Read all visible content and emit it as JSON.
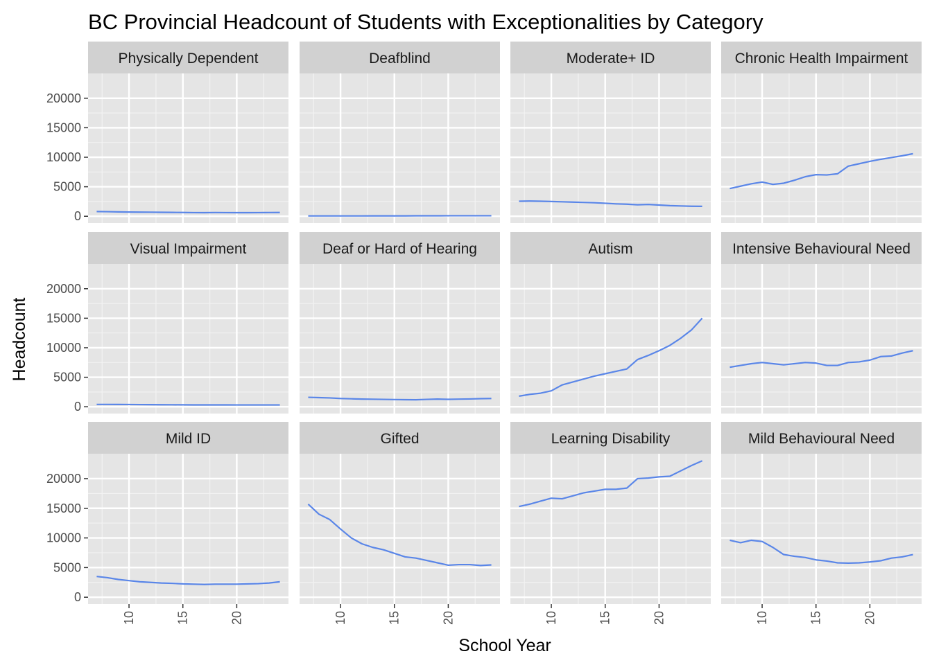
{
  "chart_data": {
    "type": "line",
    "title": "BC Provincial Headcount of Students with Exceptionalities by Category",
    "xlabel": "School Year",
    "ylabel": "Headcount",
    "xlim": [
      6.2,
      24.8
    ],
    "ylim": [
      -1150,
      24200
    ],
    "x_ticks": [
      10,
      15,
      20
    ],
    "y_ticks": [
      0,
      5000,
      10000,
      15000,
      20000
    ],
    "grid": true,
    "layout": "facet 3 rows x 4 columns",
    "line_color": "#5a86e8",
    "panel_background": "#e5e5e5",
    "strip_background": "#d1d1d1",
    "x": [
      7,
      8,
      9,
      10,
      11,
      12,
      13,
      14,
      15,
      16,
      17,
      18,
      19,
      20,
      21,
      22,
      23,
      24
    ],
    "series": [
      {
        "name": "Physically Dependent",
        "values": [
          800,
          780,
          740,
          710,
          700,
          690,
          670,
          650,
          640,
          620,
          610,
          630,
          620,
          610,
          610,
          620,
          630,
          640
        ]
      },
      {
        "name": "Deafblind",
        "values": [
          60,
          60,
          60,
          60,
          60,
          60,
          70,
          70,
          70,
          70,
          80,
          80,
          80,
          90,
          90,
          90,
          90,
          90
        ]
      },
      {
        "name": "Moderate+ ID",
        "values": [
          2550,
          2580,
          2550,
          2500,
          2450,
          2400,
          2350,
          2300,
          2200,
          2100,
          2050,
          1950,
          2000,
          1900,
          1800,
          1750,
          1700,
          1680
        ]
      },
      {
        "name": "Chronic Health Impairment",
        "values": [
          4700,
          5100,
          5500,
          5800,
          5400,
          5600,
          6100,
          6700,
          7050,
          7000,
          7200,
          8500,
          8900,
          9300,
          9650,
          9950,
          10250,
          10600
        ]
      },
      {
        "name": "Visual Impairment",
        "values": [
          400,
          400,
          390,
          380,
          370,
          360,
          350,
          340,
          330,
          320,
          320,
          320,
          320,
          310,
          310,
          310,
          310,
          310
        ]
      },
      {
        "name": "Deaf or Hard of Hearing",
        "values": [
          1600,
          1550,
          1500,
          1400,
          1350,
          1300,
          1280,
          1250,
          1220,
          1200,
          1180,
          1250,
          1300,
          1260,
          1290,
          1320,
          1370,
          1400
        ]
      },
      {
        "name": "Autism",
        "values": [
          1800,
          2100,
          2300,
          2700,
          3700,
          4200,
          4700,
          5200,
          5600,
          6000,
          6400,
          8000,
          8700,
          9500,
          10400,
          11600,
          13000,
          15000
        ]
      },
      {
        "name": "Intensive Behavioural Need",
        "values": [
          6700,
          7000,
          7300,
          7500,
          7300,
          7100,
          7300,
          7500,
          7400,
          7000,
          7000,
          7500,
          7600,
          7900,
          8500,
          8600,
          9100,
          9500
        ]
      },
      {
        "name": "Mild ID",
        "values": [
          3500,
          3300,
          3000,
          2800,
          2600,
          2500,
          2400,
          2350,
          2250,
          2200,
          2150,
          2200,
          2200,
          2200,
          2250,
          2300,
          2400,
          2600
        ]
      },
      {
        "name": "Gifted",
        "values": [
          15700,
          14000,
          13100,
          11500,
          10000,
          9000,
          8400,
          8000,
          7400,
          6800,
          6600,
          6200,
          5800,
          5400,
          5500,
          5500,
          5350,
          5450
        ]
      },
      {
        "name": "Learning Disability",
        "values": [
          15300,
          15700,
          16200,
          16700,
          16600,
          17100,
          17600,
          17900,
          18200,
          18200,
          18400,
          20000,
          20100,
          20300,
          20400,
          21300,
          22200,
          23000
        ]
      },
      {
        "name": "Mild Behavioural Need",
        "values": [
          9600,
          9200,
          9600,
          9400,
          8400,
          7200,
          6900,
          6700,
          6300,
          6100,
          5800,
          5750,
          5800,
          5950,
          6150,
          6600,
          6800,
          7200
        ]
      }
    ]
  }
}
